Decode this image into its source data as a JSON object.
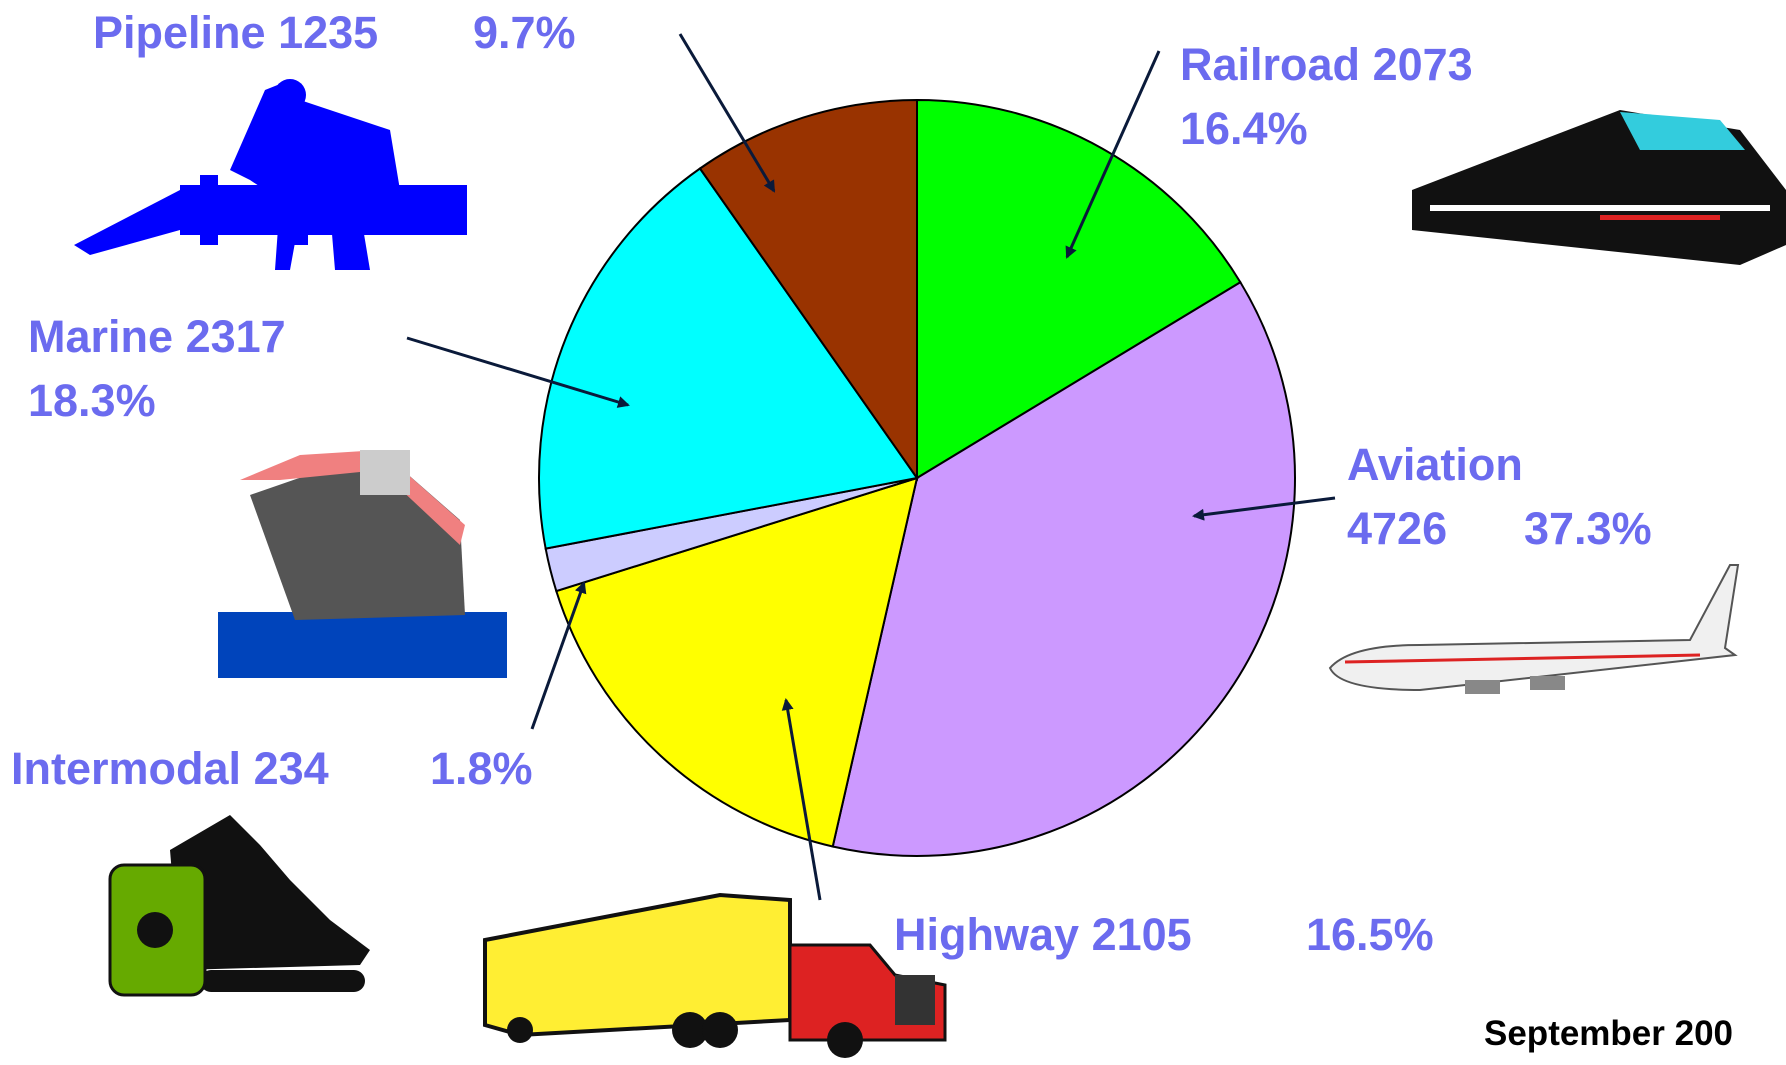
{
  "chart_data": {
    "type": "pie",
    "categories": [
      "Railroad",
      "Aviation",
      "Highway",
      "Intermodal",
      "Marine",
      "Pipeline"
    ],
    "values": [
      2073,
      4726,
      2105,
      234,
      2317,
      1235
    ],
    "share_labels": [
      "16.4%",
      "37.3%",
      "16.5%",
      "1.8%",
      "18.3%",
      "9.7%"
    ],
    "colors": [
      "#00ff00",
      "#cc99ff",
      "#ffff00",
      "#ccccff",
      "#00ffff",
      "#993300"
    ],
    "footnote": "September 200"
  }
}
